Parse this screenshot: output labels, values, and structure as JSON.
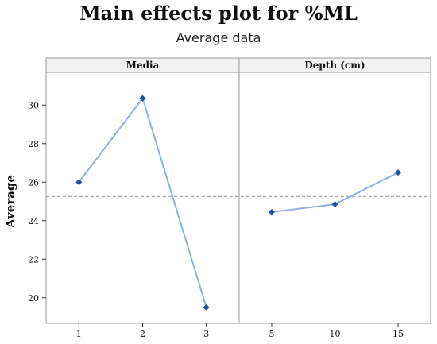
{
  "chart_data": {
    "type": "line",
    "title": "Main effects plot for %ML",
    "subtitle": "Average data",
    "ylabel": "Average",
    "ylim": [
      19,
      31
    ],
    "yticks": [
      20,
      22,
      24,
      26,
      28,
      30
    ],
    "reference_mean": 25.25,
    "colors": {
      "line": "#8fb1dc",
      "marker": "#1f4fa3",
      "reference": "#aaaaaa",
      "frame": "#999999",
      "header_bg": "#f2f2f2"
    },
    "panels": [
      {
        "name": "Media",
        "categories": [
          "1",
          "2",
          "3"
        ],
        "values": [
          26.0,
          30.35,
          19.5
        ]
      },
      {
        "name": "Depth (cm)",
        "categories": [
          "5",
          "10",
          "15"
        ],
        "values": [
          24.45,
          24.85,
          26.5
        ]
      }
    ]
  }
}
